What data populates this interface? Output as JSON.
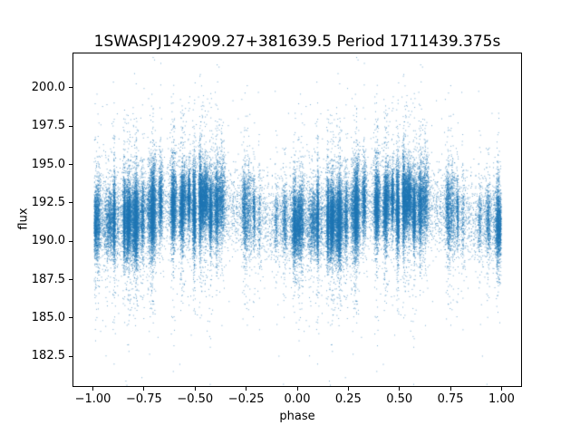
{
  "chart_data": {
    "type": "scatter",
    "title": "1SWASPJ142909.27+381639.5 Period 1711439.375s",
    "xlabel": "phase",
    "ylabel": "flux",
    "xlim": [
      -1.1,
      1.1
    ],
    "ylim": [
      180.5,
      202.3
    ],
    "xticks": [
      -1.0,
      -0.75,
      -0.5,
      -0.25,
      0.0,
      0.25,
      0.5,
      0.75,
      1.0
    ],
    "xtick_labels": [
      "−1.00",
      "−0.75",
      "−0.50",
      "−0.25",
      "0.00",
      "0.25",
      "0.50",
      "0.75",
      "1.00"
    ],
    "yticks": [
      182.5,
      185.0,
      187.5,
      190.0,
      192.5,
      195.0,
      197.5,
      200.0
    ],
    "ytick_labels": [
      "182.5",
      "185.0",
      "187.5",
      "190.0",
      "192.5",
      "195.0",
      "197.5",
      "200.0"
    ],
    "grid": false,
    "legend": "none",
    "marker_color": "#1f77b4",
    "marker_alpha": 0.6,
    "marker_size_px": 1,
    "scatter_spec": {
      "comment": "dense phase-folded light curve; each observation plotted at phase p and p-1",
      "seed": 42,
      "n_points": 35000,
      "n_clusters": 70,
      "uniform_fraction": 0.1,
      "outlier_fraction": 0.1,
      "outlier_sigma": 3.0,
      "flux_mean": 191.9,
      "flux_sigma_min": 0.85,
      "flux_sigma_spread": 0.7,
      "mod_amp": 0.6,
      "sparse_phase_lo": 0.7,
      "sparse_phase_hi": 0.95,
      "sparse_weight_factor": 0.35,
      "cluster_width_min": 0.0025,
      "cluster_width_spread": 0.008
    }
  }
}
